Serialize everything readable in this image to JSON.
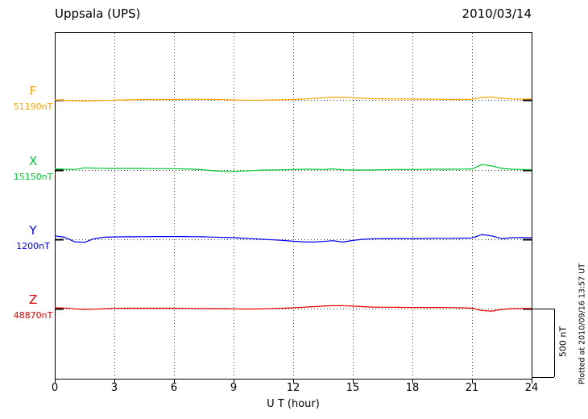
{
  "header": {
    "title": "Uppsala (UPS)",
    "date": "2010/03/14"
  },
  "axis": {
    "xlabel": "U T (hour)",
    "ticks": [
      0,
      3,
      6,
      9,
      12,
      15,
      18,
      21,
      24
    ]
  },
  "footer": {
    "note": "Plotted at 2010/09/16 13:57 UT"
  },
  "chart_data": {
    "type": "line",
    "title": "Uppsala (UPS)",
    "date": "2010/03/14",
    "xlabel": "U T (hour)",
    "xlim": [
      0,
      24
    ],
    "xticks": [
      0,
      3,
      6,
      9,
      12,
      15,
      18,
      21,
      24
    ],
    "grid": "dotted-vertical-at-xticks, dotted-horizontal-baseline-per-series",
    "legend_position": "left-of-traces",
    "scale": {
      "bar_nT": 500,
      "label": "500 nT"
    },
    "x_hours": [
      0,
      0.5,
      1,
      1.5,
      2,
      2.5,
      3,
      3.5,
      4,
      4.5,
      5,
      5.5,
      6,
      6.5,
      7,
      7.5,
      8,
      8.5,
      9,
      9.5,
      10,
      10.5,
      11,
      11.5,
      12,
      12.5,
      13,
      13.5,
      14,
      14.5,
      15,
      15.5,
      16,
      16.5,
      17,
      17.5,
      18,
      18.5,
      19,
      19.5,
      20,
      20.5,
      21,
      21.5,
      22,
      22.5,
      23,
      23.5,
      24
    ],
    "series": [
      {
        "name": "F",
        "baseline_nT": 51190,
        "baseline_label": "51190nT",
        "color": "#FFA500",
        "offsets_nT": [
          0,
          -3,
          -6,
          -8,
          -6,
          -4,
          -2,
          0,
          2,
          3,
          3,
          3,
          3,
          4,
          5,
          4,
          3,
          2,
          0,
          -2,
          -2,
          -2,
          0,
          2,
          3,
          6,
          10,
          16,
          20,
          20,
          16,
          12,
          9,
          8,
          7,
          7,
          6,
          6,
          5,
          4,
          3,
          3,
          5,
          18,
          22,
          12,
          7,
          6,
          6
        ]
      },
      {
        "name": "X",
        "baseline_nT": 15150,
        "baseline_label": "15150nT",
        "color": "#00C832",
        "offsets_nT": [
          8,
          6,
          4,
          16,
          14,
          12,
          12,
          12,
          12,
          11,
          10,
          10,
          10,
          8,
          6,
          2,
          -6,
          -10,
          -10,
          -7,
          -4,
          0,
          0,
          2,
          4,
          6,
          6,
          4,
          8,
          2,
          0,
          0,
          0,
          2,
          4,
          4,
          4,
          5,
          6,
          6,
          6,
          7,
          8,
          40,
          30,
          12,
          6,
          4,
          2
        ]
      },
      {
        "name": "Y",
        "baseline_nT": 1200,
        "baseline_label": "1200nT",
        "color": "#0000FF",
        "offsets_nT": [
          25,
          15,
          -18,
          -22,
          5,
          15,
          17,
          18,
          18,
          19,
          20,
          20,
          20,
          20,
          19,
          18,
          16,
          14,
          12,
          8,
          4,
          0,
          -4,
          -8,
          -14,
          -18,
          -20,
          -16,
          -10,
          -20,
          -8,
          0,
          4,
          5,
          6,
          6,
          6,
          6,
          7,
          7,
          7,
          9,
          10,
          35,
          25,
          5,
          12,
          13,
          12
        ]
      },
      {
        "name": "Z",
        "baseline_nT": 48870,
        "baseline_label": "48870nT",
        "color": "#E60000",
        "offsets_nT": [
          6,
          4,
          -2,
          -6,
          -4,
          0,
          2,
          3,
          3,
          3,
          3,
          3,
          3,
          2,
          1,
          1,
          0,
          0,
          -2,
          -3,
          -3,
          -1,
          1,
          3,
          6,
          10,
          14,
          18,
          21,
          22,
          18,
          14,
          11,
          10,
          10,
          9,
          8,
          8,
          8,
          8,
          7,
          6,
          3,
          -14,
          -18,
          -6,
          0,
          1,
          1
        ]
      }
    ]
  }
}
